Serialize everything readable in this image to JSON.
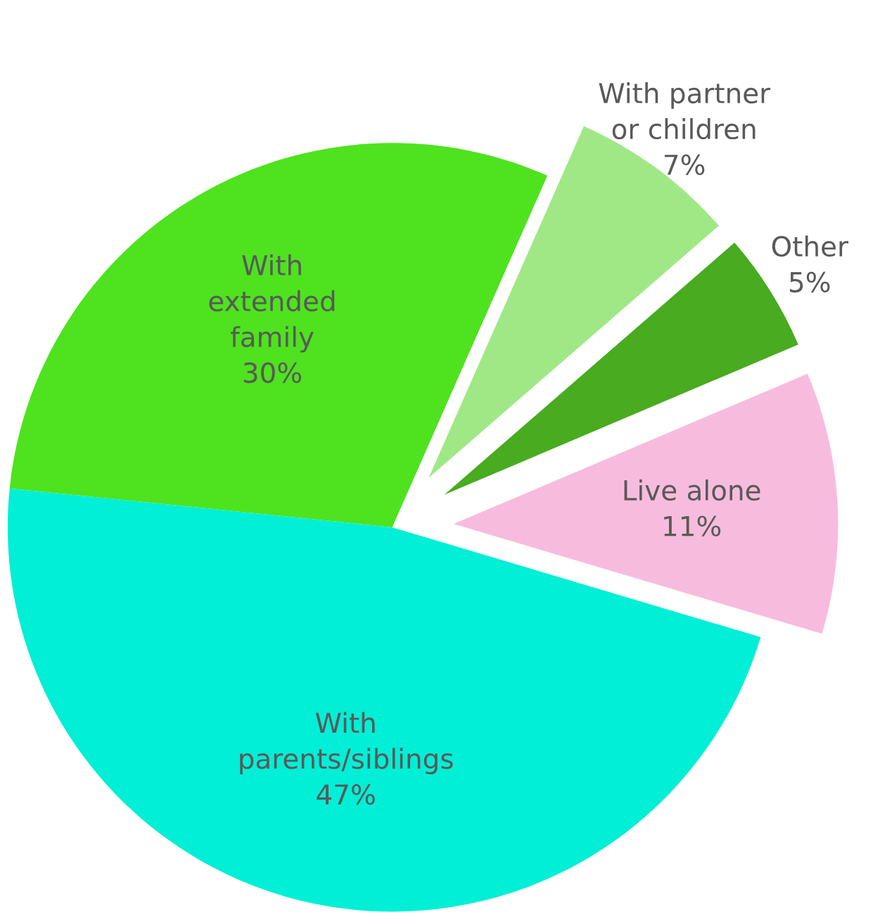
{
  "chart_data": {
    "type": "pie",
    "categories": [
      "Live alone",
      "Other",
      "With partner\nor children",
      "With\nextended\nfamily",
      "With\nparents/siblings"
    ],
    "values": [
      11,
      5,
      7,
      30,
      47
    ],
    "colors": [
      "#f7bcdd",
      "#48ab20",
      "#a0e886",
      "#4ee31e",
      "#00efd6"
    ],
    "value_labels": [
      "11%",
      "5%",
      "7%",
      "30%",
      "47%"
    ]
  }
}
